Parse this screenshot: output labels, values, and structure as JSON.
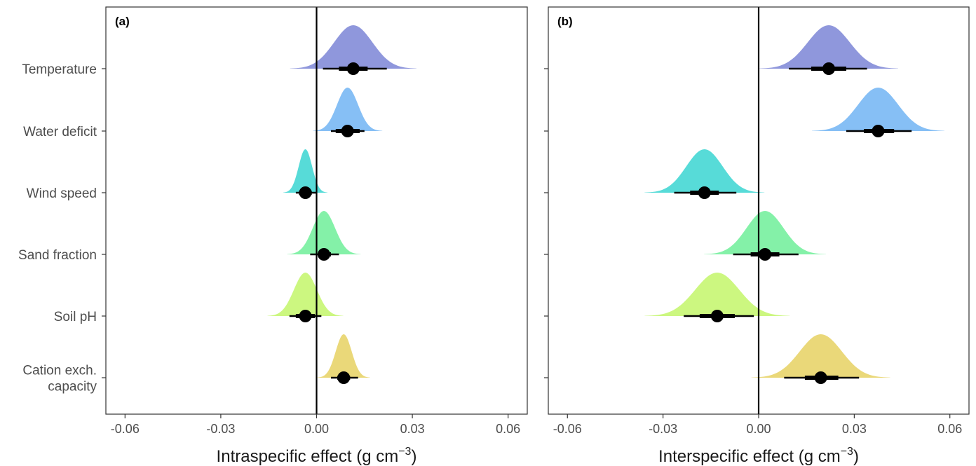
{
  "chart_data": [
    {
      "type": "halfeye",
      "panel_label": "(a)",
      "xlabel": "Intraspecific effect (g cm",
      "xlabel_sup": "−3",
      "xlabel_tail": ")",
      "xlim": [
        -0.066,
        0.066
      ],
      "xticks": [
        -0.06,
        -0.03,
        0.0,
        0.03,
        0.06
      ],
      "xtick_labels": [
        "-0.06",
        "-0.03",
        "0.00",
        "0.03",
        "0.06"
      ],
      "reference_line": 0.0,
      "grid": false,
      "series": [
        {
          "label": [
            "Temperature"
          ],
          "color": "#8f97dc",
          "median": 0.0115,
          "inner": [
            0.007,
            0.016
          ],
          "outer": [
            0.002,
            0.022
          ],
          "sd": 0.006
        },
        {
          "label": [
            "Water deficit"
          ],
          "color": "#86bff5",
          "median": 0.0097,
          "inner": [
            0.006,
            0.0135
          ],
          "outer": [
            0.0045,
            0.015
          ],
          "sd": 0.0033
        },
        {
          "label": [
            "Wind speed"
          ],
          "color": "#57dbd8",
          "median": -0.0035,
          "inner": [
            -0.0055,
            -0.0015
          ],
          "outer": [
            -0.0065,
            0.0
          ],
          "sd": 0.0021
        },
        {
          "label": [
            "Sand fraction"
          ],
          "color": "#84f1a8",
          "median": 0.0023,
          "inner": [
            0.0005,
            0.0045
          ],
          "outer": [
            -0.002,
            0.007
          ],
          "sd": 0.0035
        },
        {
          "label": [
            "Soil pH"
          ],
          "color": "#ccf780",
          "median": -0.0035,
          "inner": [
            -0.0065,
            -0.0005
          ],
          "outer": [
            -0.0085,
            0.0015
          ],
          "sd": 0.0036
        },
        {
          "label": [
            "Cation exch.",
            "capacity"
          ],
          "color": "#ead879",
          "median": 0.0085,
          "inner": [
            0.0065,
            0.0105
          ],
          "outer": [
            0.0045,
            0.013
          ],
          "sd": 0.0025
        }
      ]
    },
    {
      "type": "halfeye",
      "panel_label": "(b)",
      "xlabel": "Interspecific effect (g cm",
      "xlabel_sup": "−3",
      "xlabel_tail": ")",
      "xlim": [
        -0.066,
        0.066
      ],
      "xticks": [
        -0.06,
        -0.03,
        0.0,
        0.03,
        0.06
      ],
      "xtick_labels": [
        "-0.06",
        "-0.03",
        "0.00",
        "0.03",
        "0.06"
      ],
      "reference_line": 0.0,
      "grid": false,
      "series": [
        {
          "label": [
            "Temperature"
          ],
          "color": "#8f97dc",
          "median": 0.022,
          "inner": [
            0.0165,
            0.0275
          ],
          "outer": [
            0.0095,
            0.034
          ],
          "sd": 0.0066
        },
        {
          "label": [
            "Water deficit"
          ],
          "color": "#86bff5",
          "median": 0.0375,
          "inner": [
            0.033,
            0.0425
          ],
          "outer": [
            0.0275,
            0.048
          ],
          "sd": 0.0063
        },
        {
          "label": [
            "Wind speed"
          ],
          "color": "#57dbd8",
          "median": -0.017,
          "inner": [
            -0.0215,
            -0.0125
          ],
          "outer": [
            -0.0265,
            -0.007
          ],
          "sd": 0.0057
        },
        {
          "label": [
            "Sand fraction"
          ],
          "color": "#84f1a8",
          "median": 0.002,
          "inner": [
            -0.0025,
            0.0065
          ],
          "outer": [
            -0.008,
            0.0125
          ],
          "sd": 0.0058
        },
        {
          "label": [
            "Soil pH"
          ],
          "color": "#ccf780",
          "median": -0.013,
          "inner": [
            -0.0185,
            -0.0075
          ],
          "outer": [
            -0.0235,
            -0.0015
          ],
          "sd": 0.0069
        },
        {
          "label": [
            "Cation exch.",
            "capacity"
          ],
          "color": "#ead879",
          "median": 0.0195,
          "inner": [
            0.0145,
            0.025
          ],
          "outer": [
            0.008,
            0.0315
          ],
          "sd": 0.0066
        }
      ]
    }
  ]
}
